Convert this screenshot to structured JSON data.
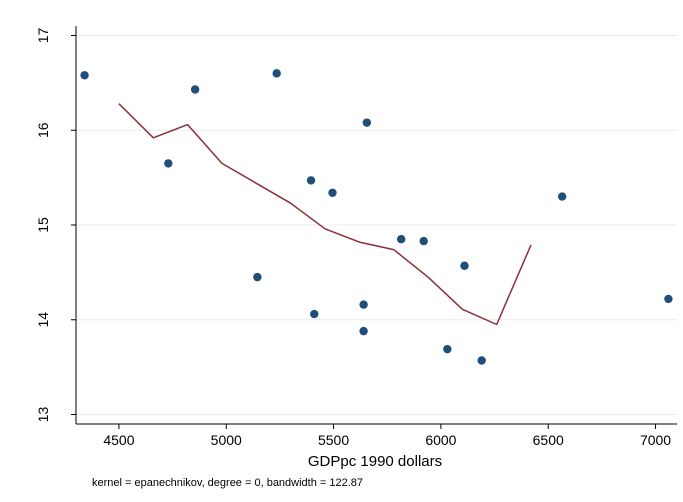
{
  "chart_data": {
    "type": "scatter",
    "title": "",
    "xlabel": "GDPpc 1990 dollars",
    "ylabel": "",
    "note": "kernel = epanechnikov, degree = 0, bandwidth = 122.87",
    "xlim": [
      4300,
      7100
    ],
    "ylim": [
      12.9,
      17.1
    ],
    "x_ticks": [
      4500,
      5000,
      5500,
      6000,
      6500,
      7000
    ],
    "y_ticks": [
      13,
      14,
      15,
      16,
      17
    ],
    "grid": true,
    "legend": "none",
    "series": [
      {
        "type": "scatter",
        "color": "#1f4e79",
        "points": [
          {
            "x": 4340,
            "y": 16.58
          },
          {
            "x": 4730,
            "y": 15.65
          },
          {
            "x": 4855,
            "y": 16.43
          },
          {
            "x": 5145,
            "y": 14.45
          },
          {
            "x": 5235,
            "y": 16.6
          },
          {
            "x": 5395,
            "y": 15.47
          },
          {
            "x": 5410,
            "y": 14.06
          },
          {
            "x": 5495,
            "y": 15.34
          },
          {
            "x": 5640,
            "y": 14.16
          },
          {
            "x": 5640,
            "y": 13.88
          },
          {
            "x": 5655,
            "y": 16.08
          },
          {
            "x": 5815,
            "y": 14.85
          },
          {
            "x": 5920,
            "y": 14.83
          },
          {
            "x": 6030,
            "y": 13.69
          },
          {
            "x": 6110,
            "y": 14.57
          },
          {
            "x": 6190,
            "y": 13.57
          },
          {
            "x": 6565,
            "y": 15.3
          },
          {
            "x": 7060,
            "y": 14.22
          }
        ]
      },
      {
        "type": "line",
        "color": "#8b2f38",
        "points": [
          {
            "x": 4500,
            "y": 16.28
          },
          {
            "x": 4660,
            "y": 15.92
          },
          {
            "x": 4820,
            "y": 16.06
          },
          {
            "x": 4980,
            "y": 15.65
          },
          {
            "x": 5140,
            "y": 15.44
          },
          {
            "x": 5300,
            "y": 15.23
          },
          {
            "x": 5460,
            "y": 14.96
          },
          {
            "x": 5620,
            "y": 14.82
          },
          {
            "x": 5780,
            "y": 14.74
          },
          {
            "x": 5940,
            "y": 14.45
          },
          {
            "x": 6100,
            "y": 14.11
          },
          {
            "x": 6260,
            "y": 13.95
          },
          {
            "x": 6420,
            "y": 14.79
          }
        ]
      }
    ]
  }
}
